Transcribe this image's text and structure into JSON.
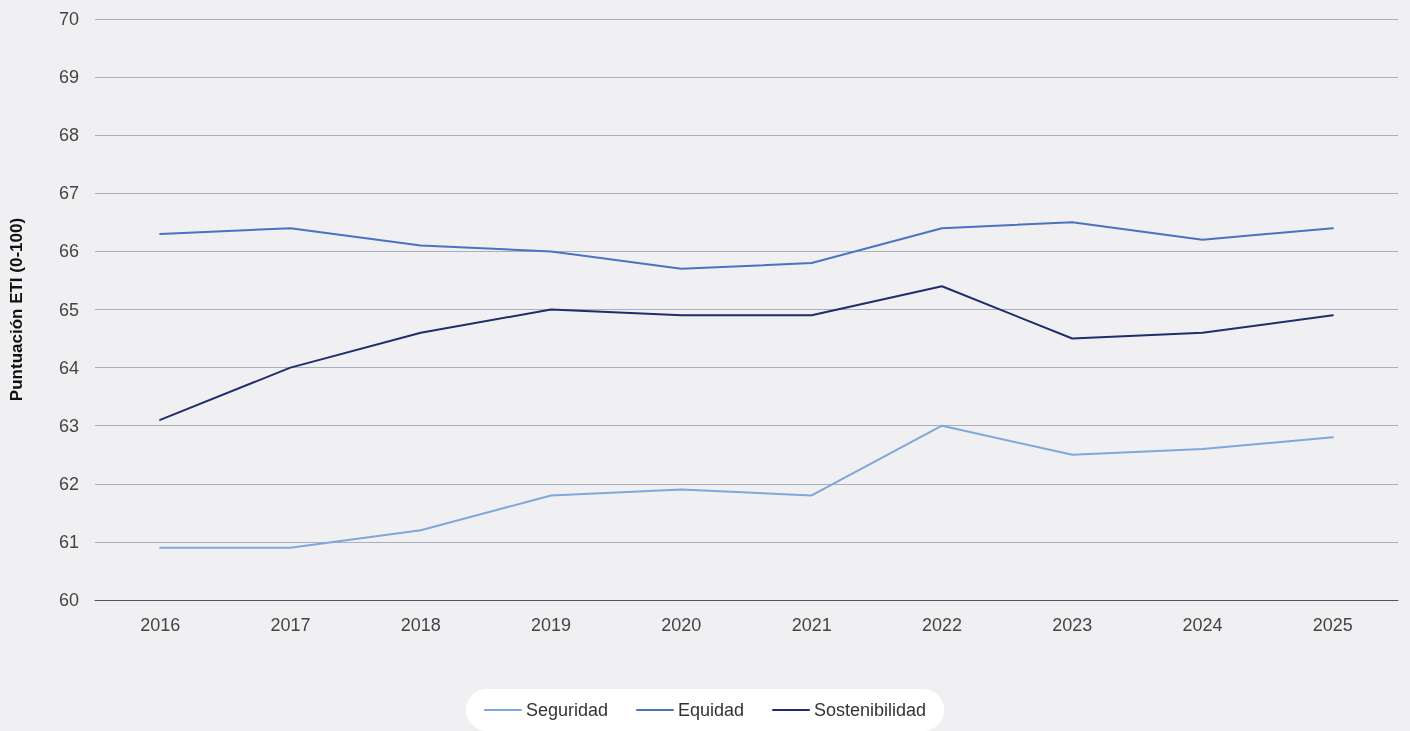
{
  "chart_data": {
    "type": "line",
    "ylabel": "Puntuación ETI (0-100)",
    "categories": [
      "2016",
      "2017",
      "2018",
      "2019",
      "2020",
      "2021",
      "2022",
      "2023",
      "2024",
      "2025"
    ],
    "series": [
      {
        "name": "Seguridad",
        "color": "#7fa7dc",
        "values": [
          60.9,
          60.9,
          61.2,
          61.8,
          61.9,
          61.8,
          63.0,
          62.5,
          62.6,
          62.8
        ]
      },
      {
        "name": "Equidad",
        "color": "#4a72c0",
        "values": [
          66.3,
          66.4,
          66.1,
          66.0,
          65.7,
          65.8,
          66.4,
          66.5,
          66.2,
          66.4
        ]
      },
      {
        "name": "Sostenibilidad",
        "color": "#1f2d6b",
        "values": [
          63.1,
          64.0,
          64.6,
          65.0,
          64.9,
          64.9,
          65.4,
          64.5,
          64.6,
          64.9
        ]
      }
    ],
    "ylim": [
      60,
      70
    ],
    "yticks": [
      60,
      61,
      62,
      63,
      64,
      65,
      66,
      67,
      68,
      69,
      70
    ],
    "grid": "y",
    "legend": "bottom",
    "marker": "none",
    "line_style": "solid"
  }
}
